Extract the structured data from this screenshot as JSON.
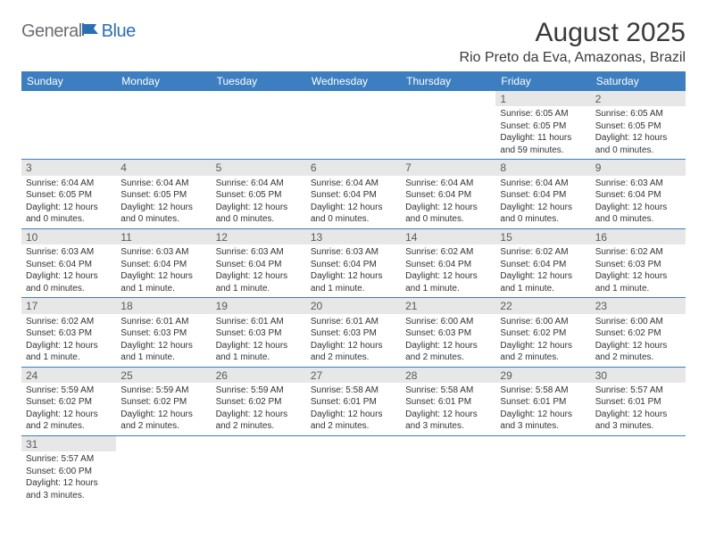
{
  "logo": {
    "text_gray": "General",
    "text_blue": "Blue",
    "icon_color": "#2b6fb3"
  },
  "title": "August 2025",
  "location": "Rio Preto da Eva, Amazonas, Brazil",
  "colors": {
    "header_bg": "#3c7ebf",
    "header_text": "#ffffff",
    "daynum_bg": "#e7e7e7",
    "daynum_text": "#5a5a5a",
    "body_text": "#333333",
    "row_border": "#3c7ebf",
    "page_bg": "#ffffff"
  },
  "day_headers": [
    "Sunday",
    "Monday",
    "Tuesday",
    "Wednesday",
    "Thursday",
    "Friday",
    "Saturday"
  ],
  "weeks": [
    [
      null,
      null,
      null,
      null,
      null,
      {
        "num": "1",
        "sunrise": "Sunrise: 6:05 AM",
        "sunset": "Sunset: 6:05 PM",
        "daylight": "Daylight: 11 hours and 59 minutes."
      },
      {
        "num": "2",
        "sunrise": "Sunrise: 6:05 AM",
        "sunset": "Sunset: 6:05 PM",
        "daylight": "Daylight: 12 hours and 0 minutes."
      }
    ],
    [
      {
        "num": "3",
        "sunrise": "Sunrise: 6:04 AM",
        "sunset": "Sunset: 6:05 PM",
        "daylight": "Daylight: 12 hours and 0 minutes."
      },
      {
        "num": "4",
        "sunrise": "Sunrise: 6:04 AM",
        "sunset": "Sunset: 6:05 PM",
        "daylight": "Daylight: 12 hours and 0 minutes."
      },
      {
        "num": "5",
        "sunrise": "Sunrise: 6:04 AM",
        "sunset": "Sunset: 6:05 PM",
        "daylight": "Daylight: 12 hours and 0 minutes."
      },
      {
        "num": "6",
        "sunrise": "Sunrise: 6:04 AM",
        "sunset": "Sunset: 6:04 PM",
        "daylight": "Daylight: 12 hours and 0 minutes."
      },
      {
        "num": "7",
        "sunrise": "Sunrise: 6:04 AM",
        "sunset": "Sunset: 6:04 PM",
        "daylight": "Daylight: 12 hours and 0 minutes."
      },
      {
        "num": "8",
        "sunrise": "Sunrise: 6:04 AM",
        "sunset": "Sunset: 6:04 PM",
        "daylight": "Daylight: 12 hours and 0 minutes."
      },
      {
        "num": "9",
        "sunrise": "Sunrise: 6:03 AM",
        "sunset": "Sunset: 6:04 PM",
        "daylight": "Daylight: 12 hours and 0 minutes."
      }
    ],
    [
      {
        "num": "10",
        "sunrise": "Sunrise: 6:03 AM",
        "sunset": "Sunset: 6:04 PM",
        "daylight": "Daylight: 12 hours and 0 minutes."
      },
      {
        "num": "11",
        "sunrise": "Sunrise: 6:03 AM",
        "sunset": "Sunset: 6:04 PM",
        "daylight": "Daylight: 12 hours and 1 minute."
      },
      {
        "num": "12",
        "sunrise": "Sunrise: 6:03 AM",
        "sunset": "Sunset: 6:04 PM",
        "daylight": "Daylight: 12 hours and 1 minute."
      },
      {
        "num": "13",
        "sunrise": "Sunrise: 6:03 AM",
        "sunset": "Sunset: 6:04 PM",
        "daylight": "Daylight: 12 hours and 1 minute."
      },
      {
        "num": "14",
        "sunrise": "Sunrise: 6:02 AM",
        "sunset": "Sunset: 6:04 PM",
        "daylight": "Daylight: 12 hours and 1 minute."
      },
      {
        "num": "15",
        "sunrise": "Sunrise: 6:02 AM",
        "sunset": "Sunset: 6:04 PM",
        "daylight": "Daylight: 12 hours and 1 minute."
      },
      {
        "num": "16",
        "sunrise": "Sunrise: 6:02 AM",
        "sunset": "Sunset: 6:03 PM",
        "daylight": "Daylight: 12 hours and 1 minute."
      }
    ],
    [
      {
        "num": "17",
        "sunrise": "Sunrise: 6:02 AM",
        "sunset": "Sunset: 6:03 PM",
        "daylight": "Daylight: 12 hours and 1 minute."
      },
      {
        "num": "18",
        "sunrise": "Sunrise: 6:01 AM",
        "sunset": "Sunset: 6:03 PM",
        "daylight": "Daylight: 12 hours and 1 minute."
      },
      {
        "num": "19",
        "sunrise": "Sunrise: 6:01 AM",
        "sunset": "Sunset: 6:03 PM",
        "daylight": "Daylight: 12 hours and 1 minute."
      },
      {
        "num": "20",
        "sunrise": "Sunrise: 6:01 AM",
        "sunset": "Sunset: 6:03 PM",
        "daylight": "Daylight: 12 hours and 2 minutes."
      },
      {
        "num": "21",
        "sunrise": "Sunrise: 6:00 AM",
        "sunset": "Sunset: 6:03 PM",
        "daylight": "Daylight: 12 hours and 2 minutes."
      },
      {
        "num": "22",
        "sunrise": "Sunrise: 6:00 AM",
        "sunset": "Sunset: 6:02 PM",
        "daylight": "Daylight: 12 hours and 2 minutes."
      },
      {
        "num": "23",
        "sunrise": "Sunrise: 6:00 AM",
        "sunset": "Sunset: 6:02 PM",
        "daylight": "Daylight: 12 hours and 2 minutes."
      }
    ],
    [
      {
        "num": "24",
        "sunrise": "Sunrise: 5:59 AM",
        "sunset": "Sunset: 6:02 PM",
        "daylight": "Daylight: 12 hours and 2 minutes."
      },
      {
        "num": "25",
        "sunrise": "Sunrise: 5:59 AM",
        "sunset": "Sunset: 6:02 PM",
        "daylight": "Daylight: 12 hours and 2 minutes."
      },
      {
        "num": "26",
        "sunrise": "Sunrise: 5:59 AM",
        "sunset": "Sunset: 6:02 PM",
        "daylight": "Daylight: 12 hours and 2 minutes."
      },
      {
        "num": "27",
        "sunrise": "Sunrise: 5:58 AM",
        "sunset": "Sunset: 6:01 PM",
        "daylight": "Daylight: 12 hours and 2 minutes."
      },
      {
        "num": "28",
        "sunrise": "Sunrise: 5:58 AM",
        "sunset": "Sunset: 6:01 PM",
        "daylight": "Daylight: 12 hours and 3 minutes."
      },
      {
        "num": "29",
        "sunrise": "Sunrise: 5:58 AM",
        "sunset": "Sunset: 6:01 PM",
        "daylight": "Daylight: 12 hours and 3 minutes."
      },
      {
        "num": "30",
        "sunrise": "Sunrise: 5:57 AM",
        "sunset": "Sunset: 6:01 PM",
        "daylight": "Daylight: 12 hours and 3 minutes."
      }
    ],
    [
      {
        "num": "31",
        "sunrise": "Sunrise: 5:57 AM",
        "sunset": "Sunset: 6:00 PM",
        "daylight": "Daylight: 12 hours and 3 minutes."
      },
      null,
      null,
      null,
      null,
      null,
      null
    ]
  ]
}
